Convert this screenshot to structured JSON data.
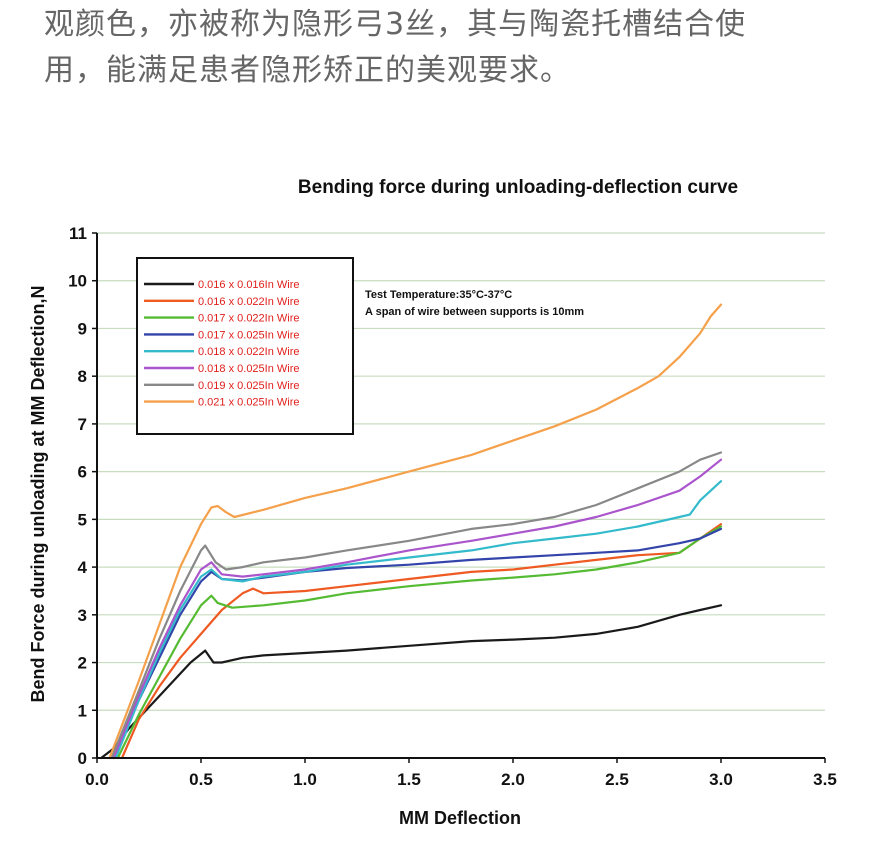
{
  "intro": {
    "line1": "观颜色，亦被称为隐形弓3丝，其与陶瓷托槽结合使",
    "line2": "用，能满足患者隐形矫正的美观要求。"
  },
  "chart_data": {
    "type": "line",
    "title": "Bending force during unloading-deflection curve",
    "xlabel": "MM Deflection",
    "ylabel": "Bend Force during unloading at MM Deflection,N",
    "xlim": [
      0,
      3.5
    ],
    "ylim": [
      0,
      11
    ],
    "xticks": [
      "0.0",
      "0.5",
      "1.0",
      "1.5",
      "2.0",
      "2.5",
      "3.0",
      "3.5"
    ],
    "yticks": [
      "0",
      "1",
      "2",
      "3",
      "4",
      "5",
      "6",
      "7",
      "8",
      "9",
      "10",
      "11"
    ],
    "grid": "horizontal",
    "legend_position": "top-left",
    "annotation": {
      "line1": "Test Temperature:35°C-37°C",
      "line2": "A span of wire between supports is 10mm"
    },
    "series": [
      {
        "name": "0.016 x 0.016In Wire",
        "color": "#1a1a1a",
        "x": [
          0.02,
          0.08,
          0.15,
          0.3,
          0.45,
          0.52,
          0.56,
          0.6,
          0.7,
          0.8,
          1.0,
          1.2,
          1.5,
          1.8,
          2.0,
          2.2,
          2.4,
          2.6,
          2.8,
          2.9,
          3.0
        ],
        "y": [
          0.0,
          0.2,
          0.6,
          1.3,
          2.0,
          2.25,
          2.0,
          2.0,
          2.1,
          2.15,
          2.2,
          2.25,
          2.35,
          2.45,
          2.48,
          2.52,
          2.6,
          2.75,
          3.0,
          3.1,
          3.2
        ]
      },
      {
        "name": "0.016 x 0.022In Wire",
        "color": "#ee5a22",
        "x": [
          0.12,
          0.2,
          0.3,
          0.4,
          0.5,
          0.6,
          0.7,
          0.75,
          0.8,
          1.0,
          1.2,
          1.5,
          1.8,
          2.0,
          2.2,
          2.4,
          2.6,
          2.8,
          2.9,
          3.0
        ],
        "y": [
          0.0,
          0.8,
          1.5,
          2.1,
          2.6,
          3.1,
          3.45,
          3.55,
          3.45,
          3.5,
          3.6,
          3.75,
          3.9,
          3.95,
          4.05,
          4.15,
          4.25,
          4.3,
          4.6,
          4.9
        ]
      },
      {
        "name": "0.017 x 0.022In Wire",
        "color": "#55bb33",
        "x": [
          0.1,
          0.2,
          0.3,
          0.4,
          0.5,
          0.55,
          0.58,
          0.65,
          0.8,
          1.0,
          1.2,
          1.5,
          1.8,
          2.0,
          2.2,
          2.4,
          2.6,
          2.8,
          2.9,
          3.0
        ],
        "y": [
          0.0,
          0.9,
          1.7,
          2.5,
          3.2,
          3.4,
          3.25,
          3.15,
          3.2,
          3.3,
          3.45,
          3.6,
          3.72,
          3.78,
          3.85,
          3.95,
          4.1,
          4.3,
          4.6,
          4.85
        ]
      },
      {
        "name": "0.017 x 0.025In Wire",
        "color": "#3344aa",
        "x": [
          0.08,
          0.2,
          0.3,
          0.4,
          0.5,
          0.55,
          0.6,
          0.7,
          0.8,
          1.0,
          1.2,
          1.5,
          1.8,
          2.0,
          2.2,
          2.4,
          2.6,
          2.8,
          2.9,
          3.0
        ],
        "y": [
          0.0,
          1.2,
          2.1,
          3.0,
          3.7,
          3.9,
          3.75,
          3.72,
          3.78,
          3.9,
          3.98,
          4.05,
          4.15,
          4.2,
          4.25,
          4.3,
          4.35,
          4.5,
          4.6,
          4.8
        ]
      },
      {
        "name": "0.018 x 0.022In Wire",
        "color": "#33bbcc",
        "x": [
          0.09,
          0.2,
          0.3,
          0.4,
          0.5,
          0.55,
          0.6,
          0.7,
          0.8,
          1.0,
          1.2,
          1.5,
          1.8,
          2.0,
          2.2,
          2.4,
          2.6,
          2.8,
          2.85,
          2.9,
          3.0
        ],
        "y": [
          0.0,
          1.2,
          2.2,
          3.1,
          3.8,
          3.95,
          3.75,
          3.7,
          3.8,
          3.9,
          4.05,
          4.2,
          4.35,
          4.5,
          4.6,
          4.7,
          4.85,
          5.05,
          5.1,
          5.4,
          5.8
        ]
      },
      {
        "name": "0.018 x 0.025In Wire",
        "color": "#aa55cc",
        "x": [
          0.08,
          0.2,
          0.3,
          0.4,
          0.5,
          0.55,
          0.6,
          0.7,
          0.8,
          1.0,
          1.2,
          1.5,
          1.8,
          2.0,
          2.2,
          2.4,
          2.6,
          2.8,
          2.9,
          3.0
        ],
        "y": [
          0.0,
          1.3,
          2.3,
          3.2,
          3.95,
          4.1,
          3.85,
          3.8,
          3.85,
          3.95,
          4.1,
          4.35,
          4.55,
          4.7,
          4.85,
          5.05,
          5.3,
          5.6,
          5.9,
          6.25
        ]
      },
      {
        "name": "0.019 x 0.025In Wire",
        "color": "#888888",
        "x": [
          0.07,
          0.2,
          0.3,
          0.4,
          0.5,
          0.52,
          0.57,
          0.62,
          0.7,
          0.8,
          1.0,
          1.2,
          1.5,
          1.8,
          2.0,
          2.2,
          2.4,
          2.6,
          2.8,
          2.9,
          3.0
        ],
        "y": [
          0.0,
          1.4,
          2.5,
          3.5,
          4.35,
          4.45,
          4.1,
          3.95,
          4.0,
          4.1,
          4.2,
          4.35,
          4.55,
          4.8,
          4.9,
          5.05,
          5.3,
          5.65,
          6.0,
          6.25,
          6.4
        ]
      },
      {
        "name": "0.021 x 0.025In Wire",
        "color": "#f5a04a",
        "x": [
          0.06,
          0.2,
          0.3,
          0.4,
          0.5,
          0.55,
          0.58,
          0.62,
          0.66,
          0.8,
          1.0,
          1.2,
          1.5,
          1.8,
          2.0,
          2.2,
          2.4,
          2.6,
          2.7,
          2.8,
          2.9,
          2.95,
          3.0
        ],
        "y": [
          0.0,
          1.6,
          2.8,
          4.0,
          4.9,
          5.25,
          5.28,
          5.15,
          5.05,
          5.2,
          5.45,
          5.65,
          6.0,
          6.35,
          6.65,
          6.95,
          7.3,
          7.75,
          8.0,
          8.4,
          8.9,
          9.25,
          9.5
        ]
      }
    ]
  }
}
